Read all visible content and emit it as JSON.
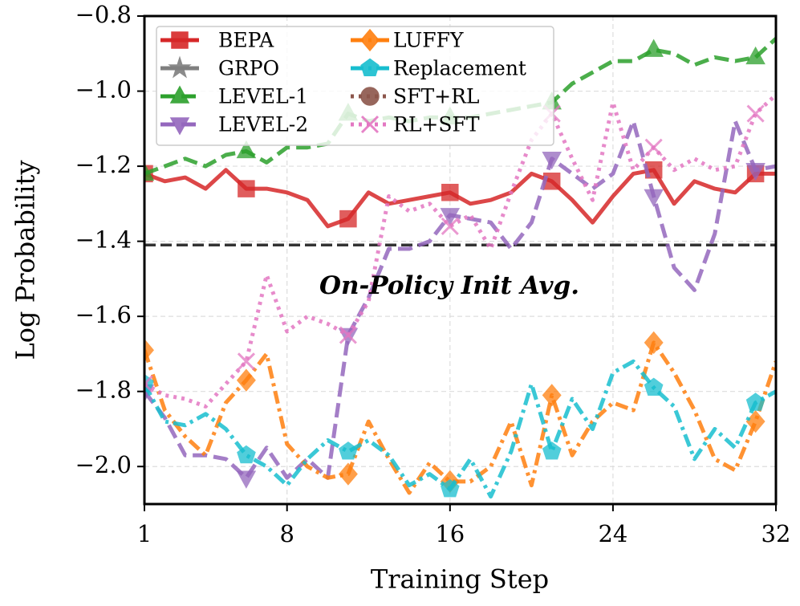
{
  "chart_data": {
    "type": "line",
    "xlabel": "Training Step",
    "ylabel": "Log Probability",
    "x": [
      1,
      2,
      3,
      4,
      5,
      6,
      7,
      8,
      9,
      10,
      11,
      12,
      13,
      14,
      15,
      16,
      17,
      18,
      19,
      20,
      21,
      22,
      23,
      24,
      25,
      26,
      27,
      28,
      29,
      30,
      31,
      32
    ],
    "xlim": [
      1,
      32
    ],
    "xticks": [
      1,
      8,
      16,
      24,
      32
    ],
    "ylim": [
      -2.1,
      -0.8
    ],
    "yticks": [
      -2.0,
      -1.8,
      -1.6,
      -1.4,
      -1.2,
      -1.0,
      -0.8
    ],
    "grid": true,
    "legend": "upper left",
    "reference_line": {
      "value": -1.41,
      "label": "On-Policy Init Avg."
    },
    "series": [
      {
        "name": "BEPA",
        "color": "#d62728",
        "marker": "square",
        "linestyle": "solid",
        "values": [
          -1.22,
          -1.24,
          -1.23,
          -1.26,
          -1.21,
          -1.26,
          -1.26,
          -1.27,
          -1.29,
          -1.36,
          -1.34,
          -1.27,
          -1.3,
          -1.29,
          -1.28,
          -1.27,
          -1.3,
          -1.29,
          -1.27,
          -1.22,
          -1.24,
          -1.29,
          -1.35,
          -1.28,
          -1.22,
          -1.21,
          -1.3,
          -1.24,
          -1.26,
          -1.27,
          -1.22,
          -1.22
        ]
      },
      {
        "name": "GRPO",
        "color": "#7f7f7f",
        "marker": "star",
        "linestyle": "solid",
        "values": [
          null,
          null,
          null,
          null,
          null,
          null,
          null,
          null,
          null,
          null,
          null,
          null,
          null,
          null,
          null,
          null,
          null,
          null,
          null,
          null,
          null,
          null,
          null,
          null,
          null,
          null,
          null,
          null,
          null,
          null,
          null,
          null
        ]
      },
      {
        "name": "LEVEL-1",
        "color": "#2ca02c",
        "marker": "triangle-up",
        "linestyle": "dashed",
        "values": [
          -1.22,
          -1.2,
          -1.18,
          -1.2,
          -1.17,
          -1.16,
          -1.19,
          -1.15,
          -1.15,
          -1.14,
          -1.06,
          -1.08,
          -1.07,
          -1.08,
          -1.07,
          -1.07,
          -1.07,
          -1.06,
          -1.05,
          -1.04,
          -1.03,
          -0.98,
          -0.95,
          -0.92,
          -0.92,
          -0.89,
          -0.9,
          -0.93,
          -0.91,
          -0.92,
          -0.91,
          -0.86
        ]
      },
      {
        "name": "LEVEL-2",
        "color": "#9467bd",
        "marker": "triangle-down",
        "linestyle": "dashed",
        "values": [
          -1.8,
          -1.87,
          -1.97,
          -1.97,
          -1.98,
          -2.03,
          -1.95,
          -2.03,
          -1.98,
          -2.03,
          -1.65,
          -1.55,
          -1.42,
          -1.42,
          -1.4,
          -1.33,
          -1.34,
          -1.35,
          -1.42,
          -1.35,
          -1.18,
          -1.22,
          -1.26,
          -1.22,
          -1.08,
          -1.28,
          -1.47,
          -1.53,
          -1.38,
          -1.08,
          -1.21,
          -1.2
        ]
      },
      {
        "name": "LUFFY",
        "color": "#ff7f0e",
        "marker": "diamond",
        "linestyle": "dashdot",
        "values": [
          -1.69,
          -1.85,
          -1.92,
          -1.97,
          -1.83,
          -1.77,
          -1.7,
          -1.94,
          -2.0,
          -2.03,
          -2.02,
          -1.88,
          -1.98,
          -2.07,
          -1.99,
          -2.04,
          -2.04,
          -2.0,
          -1.88,
          -2.05,
          -1.81,
          -1.97,
          -1.88,
          -1.83,
          -1.85,
          -1.67,
          -1.75,
          -1.85,
          -1.98,
          -2.01,
          -1.88,
          -1.72
        ]
      },
      {
        "name": "Replacement",
        "color": "#17becf",
        "marker": "pentagon",
        "linestyle": "dashdot",
        "values": [
          -1.78,
          -1.88,
          -1.89,
          -1.86,
          -1.9,
          -1.97,
          -2.0,
          -2.05,
          -1.98,
          -1.93,
          -1.96,
          -1.93,
          -1.97,
          -2.05,
          -2.02,
          -2.06,
          -1.98,
          -2.08,
          -1.96,
          -1.78,
          -1.96,
          -1.82,
          -1.9,
          -1.75,
          -1.72,
          -1.79,
          -1.84,
          -1.98,
          -1.9,
          -1.95,
          -1.83,
          -1.8
        ]
      },
      {
        "name": "SFT+RL",
        "color": "#8c564b",
        "marker": "circle",
        "linestyle": "dotted",
        "values": [
          null,
          null,
          null,
          null,
          null,
          null,
          null,
          null,
          null,
          null,
          null,
          null,
          null,
          null,
          null,
          null,
          null,
          null,
          null,
          null,
          null,
          null,
          null,
          null,
          null,
          null,
          null,
          null,
          null,
          null,
          null,
          null
        ]
      },
      {
        "name": "RL+SFT",
        "color": "#e377c2",
        "marker": "x",
        "linestyle": "dotted",
        "values": [
          -1.78,
          -1.81,
          -1.82,
          -1.84,
          -1.78,
          -1.72,
          -1.49,
          -1.64,
          -1.6,
          -1.62,
          -1.65,
          -1.56,
          -1.28,
          -1.32,
          -1.3,
          -1.36,
          -1.33,
          -1.42,
          -1.27,
          -1.13,
          -1.06,
          -1.18,
          -1.29,
          -1.03,
          -1.21,
          -1.15,
          -1.21,
          -1.18,
          -1.21,
          -1.2,
          -1.06,
          -1.01
        ]
      }
    ]
  }
}
